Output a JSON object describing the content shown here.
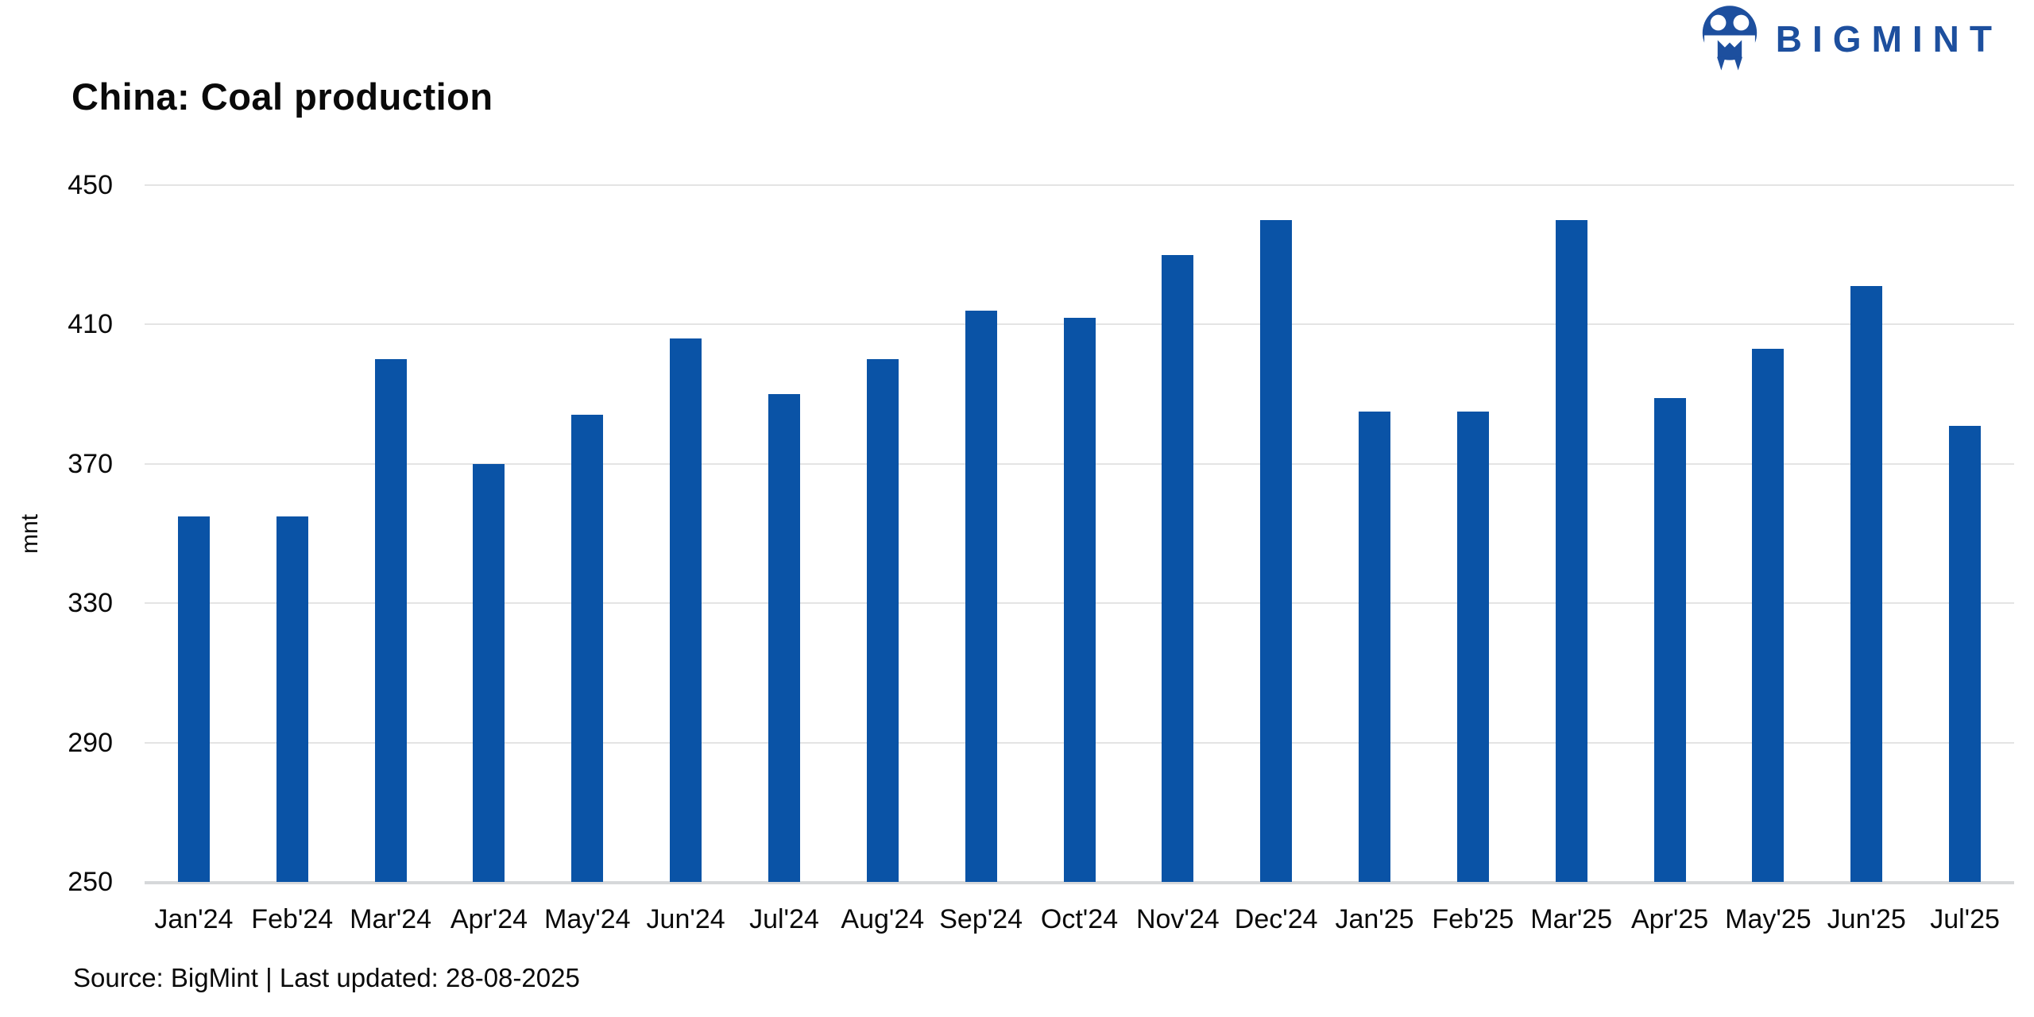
{
  "header": {
    "title": "China: Coal production",
    "brand": "BIGMINT"
  },
  "footer": {
    "source_note": "Source: BigMint | Last updated: 28-08-2025"
  },
  "colors": {
    "bar": "#0a53a6",
    "brand_blue": "#1d4f9e",
    "gridline": "#e4e4e4",
    "axis_line": "#d6d8da",
    "text": "#0a0a0a"
  },
  "chart_data": {
    "type": "bar",
    "title": "China: Coal production",
    "xlabel": "",
    "ylabel": "mnt",
    "ylim": [
      250,
      450
    ],
    "yticks": [
      250,
      290,
      330,
      370,
      410,
      450
    ],
    "grid": "horizontal gridlines on, vertical off",
    "legend": "none",
    "bar_color": "#0a53a6",
    "categories": [
      "Jan'24",
      "Feb'24",
      "Mar'24",
      "Apr'24",
      "May'24",
      "Jun'24",
      "Jul'24",
      "Aug'24",
      "Sep'24",
      "Oct'24",
      "Nov'24",
      "Dec'24",
      "Jan'25",
      "Feb'25",
      "Mar'25",
      "Apr'25",
      "May'25",
      "Jun'25",
      "Jul'25"
    ],
    "values": [
      355,
      355,
      400,
      370,
      384,
      406,
      390,
      400,
      414,
      412,
      430,
      440,
      385,
      385,
      440,
      389,
      403,
      421,
      381
    ]
  }
}
